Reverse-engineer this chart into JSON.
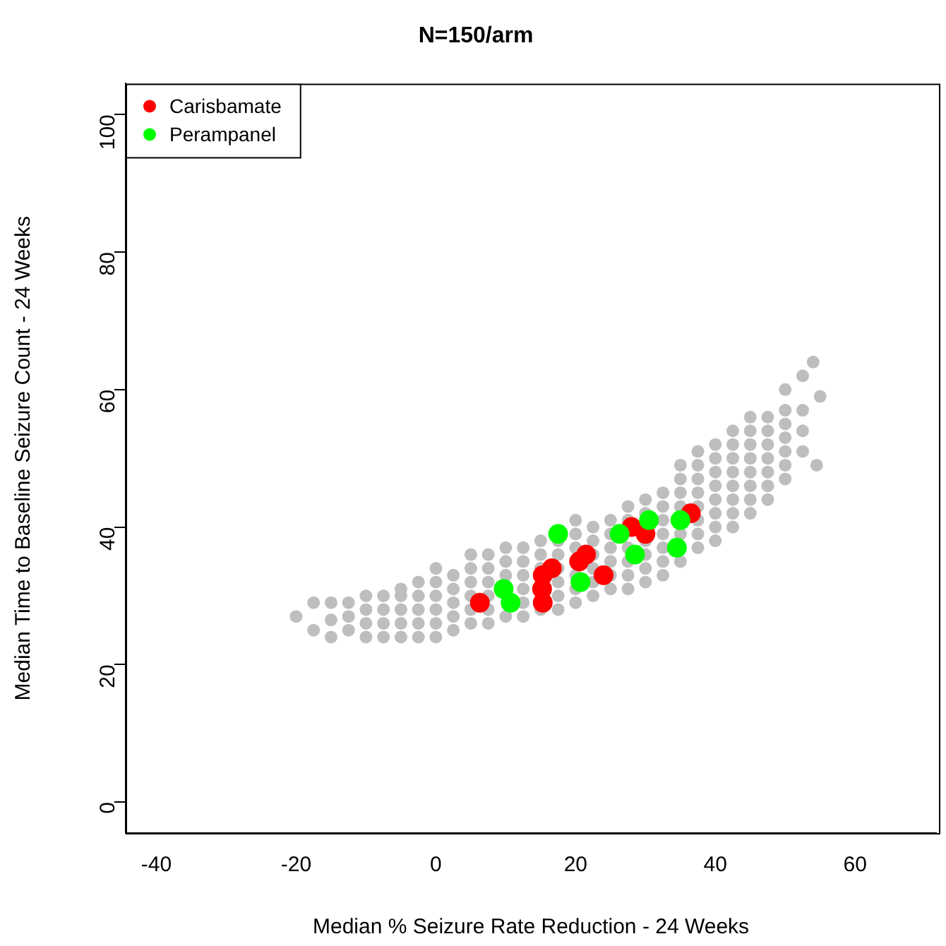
{
  "chart_data": {
    "type": "scatter",
    "title": "N=150/arm",
    "xlabel": "Median % Seizure Rate Reduction - 24 Weeks",
    "ylabel": "Median Time to Baseline Seizure Count - 24 Weeks",
    "xlim": [
      -44.4,
      71.6
    ],
    "ylim": [
      -4.5,
      104.5
    ],
    "xticks": [
      -40,
      -20,
      0,
      20,
      40,
      60
    ],
    "yticks": [
      0,
      20,
      40,
      60,
      80,
      100
    ],
    "grid": false,
    "legend": "top left",
    "marker": "circle",
    "series": [
      {
        "color": "#bebebe",
        "x": [
          -20,
          -17.5,
          -17.5,
          -15,
          -15,
          -15,
          -12.5,
          -12.5,
          -12.5,
          -10,
          -10,
          -10,
          -10,
          -7.5,
          -7.5,
          -7.5,
          -7.5,
          -5,
          -5,
          -5,
          -5,
          -5,
          -2.5,
          -2.5,
          -2.5,
          -2.5,
          -2.5,
          0,
          0,
          0,
          0,
          0,
          0,
          2.5,
          2.5,
          2.5,
          2.5,
          2.5,
          5,
          5,
          5,
          5,
          5,
          5,
          7.5,
          7.5,
          7.5,
          7.5,
          7.5,
          7.5,
          10,
          10,
          10,
          10,
          12.5,
          12.5,
          12.5,
          12.5,
          12.5,
          12.5,
          15,
          15,
          15,
          15,
          17.5,
          17.5,
          17.5,
          17.5,
          17.5,
          17.5,
          20,
          20,
          20,
          20,
          20,
          20,
          22.5,
          22.5,
          22.5,
          22.5,
          22.5,
          22.5,
          25,
          25,
          25,
          25,
          25,
          25,
          27.5,
          27.5,
          27.5,
          27.5,
          27.5,
          27.5,
          30,
          30,
          30,
          30,
          30,
          30,
          32.5,
          32.5,
          32.5,
          32.5,
          32.5,
          32.5,
          32.5,
          35,
          35,
          35,
          35,
          35,
          35,
          37.5,
          37.5,
          37.5,
          37.5,
          37.5,
          37.5,
          37.5,
          37.5,
          40,
          40,
          40,
          40,
          40,
          40,
          40,
          40,
          42.5,
          42.5,
          42.5,
          42.5,
          42.5,
          42.5,
          42.5,
          42.5,
          45,
          45,
          45,
          45,
          45,
          45,
          45,
          45,
          47.5,
          47.5,
          47.5,
          47.5,
          47.5,
          47.5,
          47.5,
          50,
          50,
          50,
          50,
          50,
          50,
          50,
          52.5,
          52.5,
          52.5,
          52.5,
          54,
          55,
          54.5
        ],
        "values": [
          27,
          25,
          29,
          24,
          26.5,
          29,
          25,
          27,
          29,
          24,
          26,
          28,
          30,
          24,
          26,
          28,
          30,
          24,
          26,
          28,
          30,
          31,
          24,
          26,
          28,
          30,
          32,
          24,
          26,
          28,
          30,
          32,
          34,
          25,
          27,
          29,
          31,
          33,
          26,
          28,
          30,
          32,
          34,
          36,
          26,
          28,
          30,
          32,
          34,
          36,
          27,
          33,
          35,
          37,
          27,
          29,
          31,
          33,
          35,
          37,
          28,
          34,
          36,
          38,
          28,
          30,
          32,
          34,
          36,
          38,
          29,
          31,
          33,
          37,
          39,
          41,
          30,
          32,
          34,
          36,
          38,
          40,
          31,
          33,
          35,
          37,
          39,
          41,
          31,
          33,
          35,
          37,
          41,
          43,
          32,
          34,
          36,
          38,
          42,
          44,
          33,
          35,
          37,
          39,
          41,
          43,
          45,
          35,
          39,
          43,
          45,
          47,
          49,
          37,
          39,
          41,
          43,
          45,
          47,
          49,
          51,
          38,
          40,
          42,
          44,
          46,
          48,
          50,
          52,
          40,
          42,
          44,
          46,
          48,
          50,
          52,
          54,
          42,
          44,
          46,
          48,
          50,
          52,
          54,
          56,
          44,
          46,
          48,
          50,
          52,
          54,
          56,
          47,
          49,
          51,
          53,
          55,
          57,
          60,
          51,
          54,
          57,
          62,
          64,
          59,
          49
        ]
      },
      {
        "name": "Carisbamate",
        "color": "#ff0000",
        "x": [
          6.3,
          15.3,
          15.2,
          15.3,
          16.6,
          20.5,
          21.5,
          24,
          28,
          30,
          36.5
        ],
        "values": [
          29,
          29,
          31,
          33,
          34,
          35,
          36,
          33,
          40,
          39,
          42
        ]
      },
      {
        "name": "Perampanel",
        "color": "#00ff00",
        "x": [
          9.7,
          10.7,
          17.5,
          20.7,
          26.3,
          28.5,
          30.5,
          34.5,
          35
        ],
        "values": [
          31,
          29,
          39,
          32,
          39,
          36,
          41,
          37,
          41
        ]
      }
    ]
  }
}
